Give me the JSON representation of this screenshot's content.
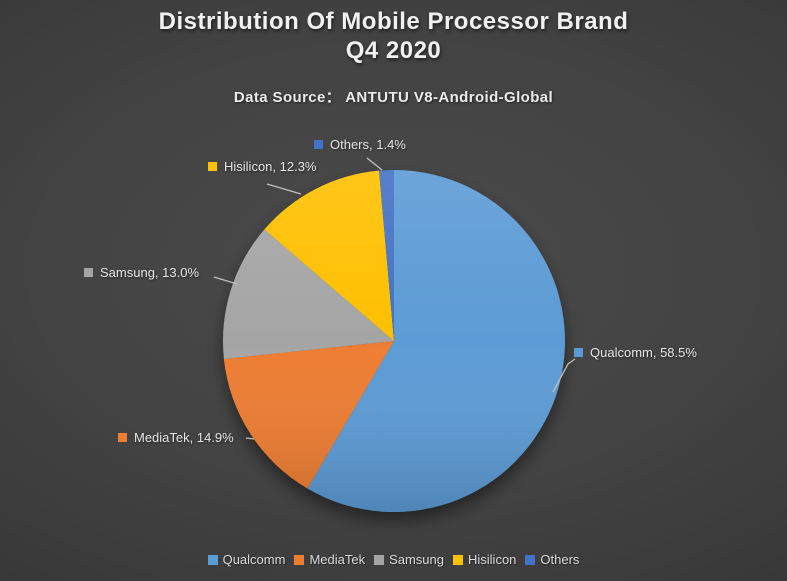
{
  "header": {
    "title_line1": "Distribution Of Mobile Processor Brand",
    "title_line2": "Q4 2020",
    "subtitle": "Data Source：  ANTUTU V8-Android-Global"
  },
  "chart_data": {
    "type": "pie",
    "title": "Distribution Of Mobile Processor Brand Q4 2020",
    "subtitle": "Data Source: ANTUTU V8-Android-Global",
    "unit": "%",
    "start_angle_deg": 0,
    "direction": "clockwise",
    "legend_position": "bottom",
    "label_style": "outside-with-leader-lines",
    "series": [
      {
        "name": "Qualcomm",
        "value": 58.5,
        "label": "Qualcomm, 58.5%",
        "color": "#5B9BD5"
      },
      {
        "name": "MediaTek",
        "value": 14.9,
        "label": "MediaTek, 14.9%",
        "color": "#ED7D31"
      },
      {
        "name": "Samsung",
        "value": 13.0,
        "label": "Samsung, 13.0%",
        "color": "#A5A5A5"
      },
      {
        "name": "Hisilicon",
        "value": 12.3,
        "label": "Hisilicon, 12.3%",
        "color": "#FFC000"
      },
      {
        "name": "Others",
        "value": 1.4,
        "label": "Others, 1.4%",
        "color": "#4472C4"
      }
    ],
    "legend_labels": [
      "Qualcomm",
      "MediaTek",
      "Samsung",
      "Hisilicon",
      "Others"
    ]
  },
  "colors": {
    "background_center": "#4a4a4a",
    "background_edge": "#272727",
    "title_text": "#f1f1f1",
    "label_text": "#e4e4e4",
    "legend_text": "#d9d9d9",
    "leader_line": "#bfbfbf"
  }
}
